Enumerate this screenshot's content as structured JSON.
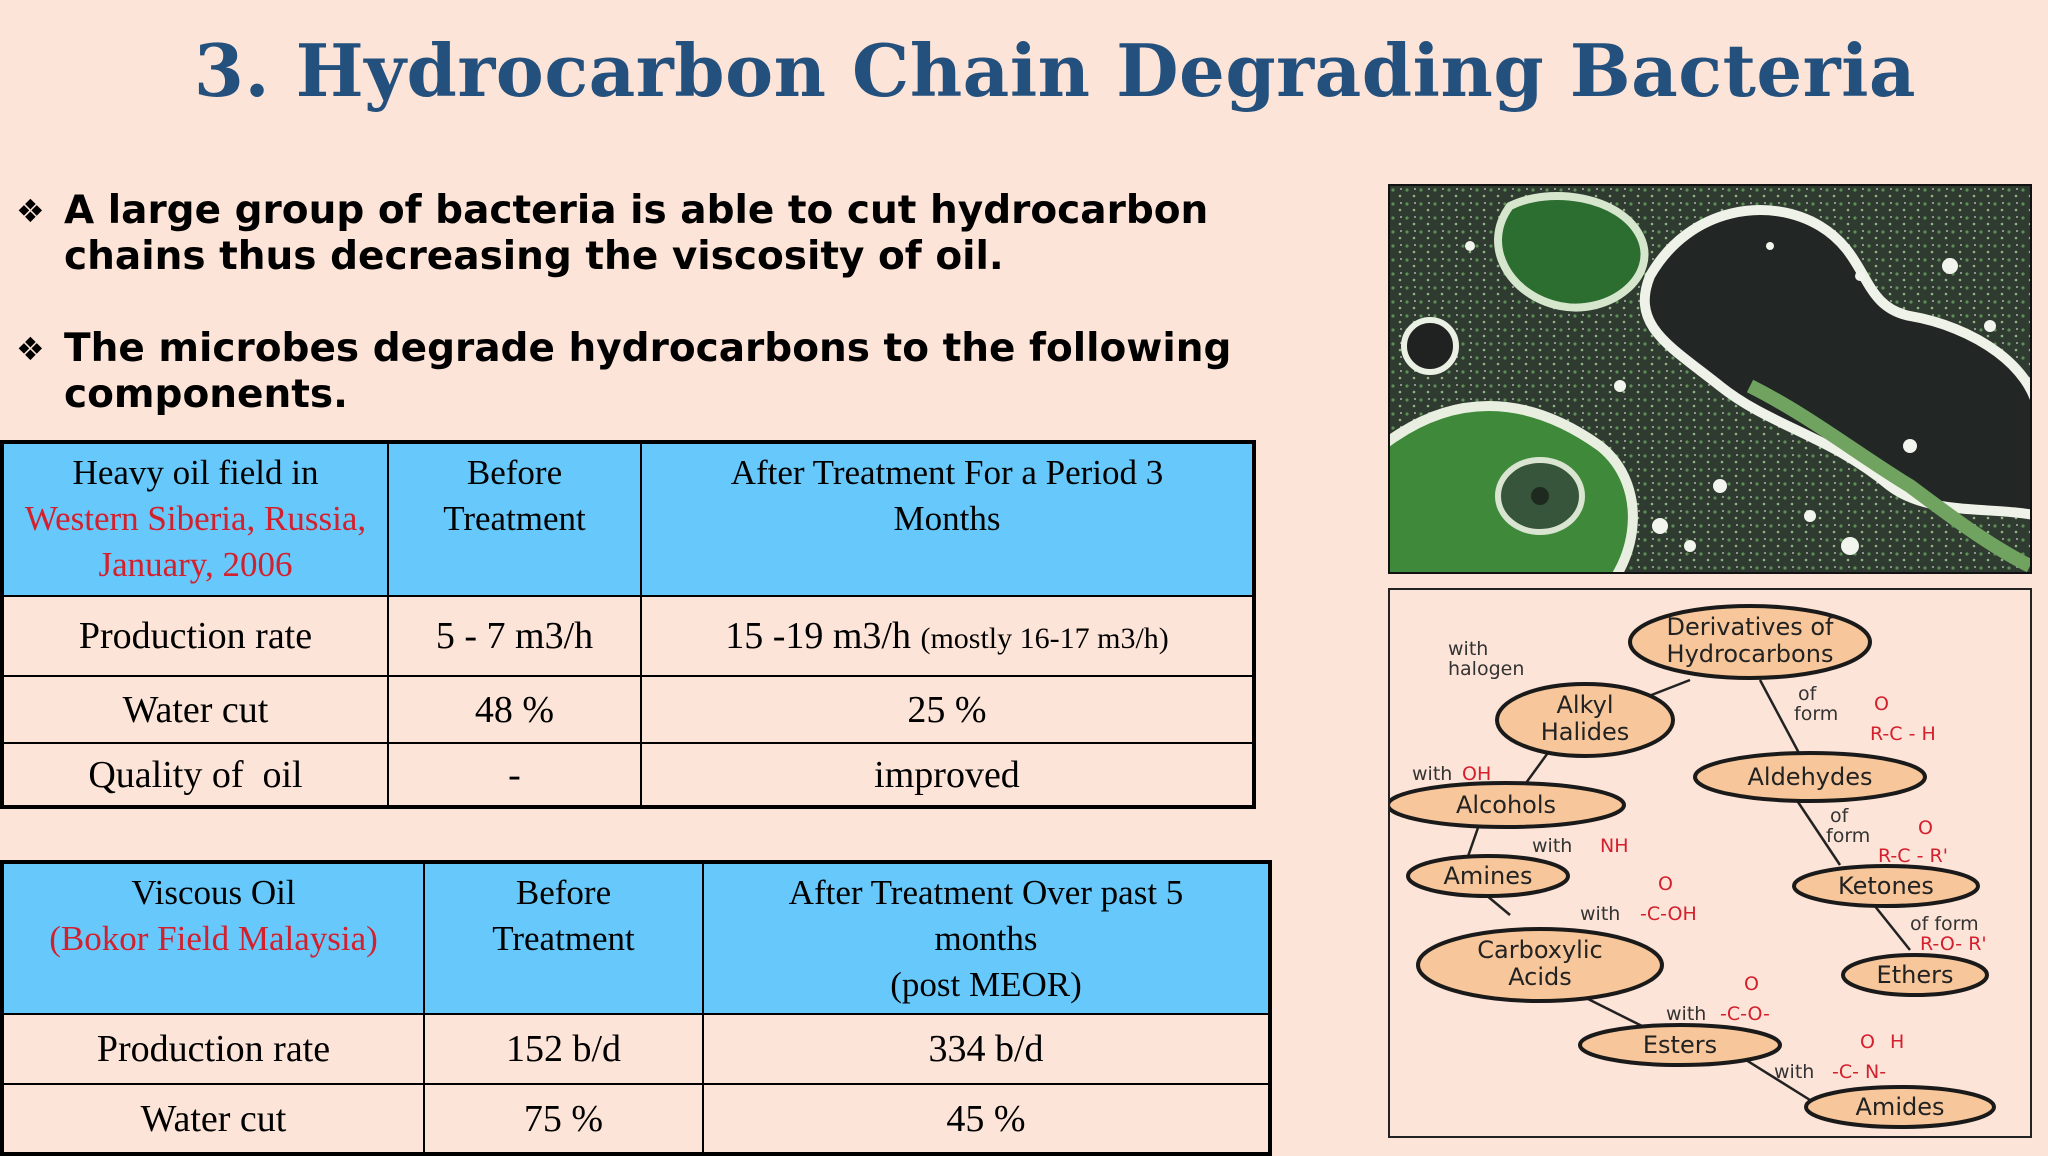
{
  "title": "3. Hydrocarbon Chain Degrading Bacteria",
  "bullets": [
    {
      "icon": "diamond-bullet-icon",
      "text": "A large group of bacteria is able to cut hydrocarbon chains thus decreasing the viscosity of oil."
    },
    {
      "icon": "diamond-bullet-icon",
      "text": "The microbes degrade hydrocarbons to the following components."
    }
  ],
  "table1": {
    "head": {
      "col1_line1": "Heavy oil field in",
      "col1_red": "Western Siberia, Russia, January, 2006",
      "col2": "Before Treatment",
      "col3": "After Treatment For a Period 3 Months"
    },
    "rows": [
      {
        "label": "Production rate",
        "before": "5 - 7 m3/h",
        "after": "15 -19 m3/h",
        "after_note": "(mostly 16-17 m3/h)"
      },
      {
        "label": "Water cut",
        "before": "48 %",
        "after": "25 %"
      },
      {
        "label": "Quality of  oil",
        "before": "-",
        "after": "improved"
      }
    ]
  },
  "table2": {
    "head": {
      "col1_line1": "Viscous Oil",
      "col1_red": "(Bokor Field Malaysia)",
      "col2": "Before Treatment",
      "col3_line1": "After Treatment Over past 5 months",
      "col3_line2": "(post MEOR)"
    },
    "rows": [
      {
        "label": "Production rate",
        "before": "152 b/d",
        "after": "334 b/d"
      },
      {
        "label": "Water cut",
        "before": "75 %",
        "after": "45 %"
      }
    ]
  },
  "diagram": {
    "nodes": {
      "root": [
        "Derivatives of",
        "Hydrocarbons"
      ],
      "alkyl": [
        "Alkyl",
        "Halides"
      ],
      "aldehydes": "Aldehydes",
      "alcohols": "Alcohols",
      "amines": "Amines",
      "ketones": "Ketones",
      "carboxylic": [
        "Carboxylic",
        "Acids"
      ],
      "ethers": "Ethers",
      "esters": "Esters",
      "amides": "Amides"
    },
    "labels": {
      "with_halogen": [
        "with",
        "halogen"
      ],
      "of_form_1": [
        "of",
        "form"
      ],
      "formula_rch": "R-C - H",
      "with_oh": "with",
      "oh": "OH",
      "of_form_2": [
        "of",
        "form"
      ],
      "formula_rcr": "R-C - R'",
      "with_nh2": "with",
      "nh2": "NH",
      "with_cooh": "with",
      "cooh": "-C-OH",
      "of_form_3": "of form",
      "formula_ror": "R-O- R'",
      "with_coo": "with",
      "coo": "-C-O-",
      "with_cn": "with",
      "cn": "-C- N-",
      "o": "O",
      "h": "H"
    }
  },
  "colors": {
    "background": "#fde4d8",
    "title": "#24507d",
    "header": "#66c8fb",
    "accent_red": "#d3202d",
    "node_fill": "#f7c69a"
  }
}
